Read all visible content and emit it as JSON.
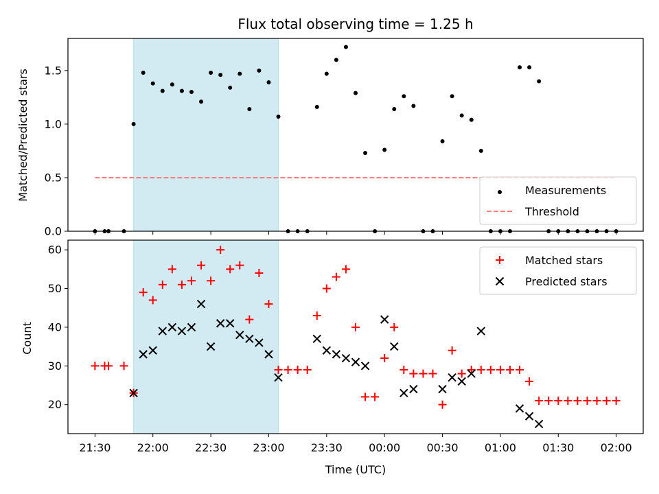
{
  "chart_data": [
    {
      "type": "scatter",
      "title": "Flux total observing time = 1.25 h",
      "ylabel": "Matched/Predicted stars",
      "xlabel": "",
      "xlim": [
        "21:16",
        "02:14"
      ],
      "ylim": [
        0,
        1.8
      ],
      "yticks": [
        "0.0",
        "0.5",
        "1.0",
        "1.5"
      ],
      "shaded_region": {
        "start": "21:50",
        "end": "23:05",
        "color": "#add8e6"
      },
      "series": [
        {
          "name": "Measurements",
          "color": "#000000",
          "marker": "dot",
          "points": [
            [
              "21:30",
              0.0
            ],
            [
              "21:35",
              0.0
            ],
            [
              "21:37",
              0.0
            ],
            [
              "21:45",
              0.0
            ],
            [
              "21:50",
              1.0
            ],
            [
              "21:55",
              1.48
            ],
            [
              "22:00",
              1.38
            ],
            [
              "22:05",
              1.31
            ],
            [
              "22:10",
              1.37
            ],
            [
              "22:15",
              1.31
            ],
            [
              "22:20",
              1.3
            ],
            [
              "22:25",
              1.21
            ],
            [
              "22:30",
              1.48
            ],
            [
              "22:35",
              1.46
            ],
            [
              "22:40",
              1.34
            ],
            [
              "22:45",
              1.47
            ],
            [
              "22:50",
              1.14
            ],
            [
              "22:55",
              1.5
            ],
            [
              "23:00",
              1.39
            ],
            [
              "23:05",
              1.07
            ],
            [
              "23:10",
              0.0
            ],
            [
              "23:15",
              0.0
            ],
            [
              "23:20",
              0.0
            ],
            [
              "23:25",
              1.16
            ],
            [
              "23:30",
              1.47
            ],
            [
              "23:35",
              1.6
            ],
            [
              "23:40",
              1.72
            ],
            [
              "23:45",
              1.29
            ],
            [
              "23:50",
              0.73
            ],
            [
              "23:55",
              0.0
            ],
            [
              "00:00",
              0.76
            ],
            [
              "00:05",
              1.14
            ],
            [
              "00:10",
              1.26
            ],
            [
              "00:15",
              1.17
            ],
            [
              "00:20",
              0.0
            ],
            [
              "00:25",
              0.0
            ],
            [
              "00:30",
              0.84
            ],
            [
              "00:35",
              1.26
            ],
            [
              "00:40",
              1.08
            ],
            [
              "00:45",
              1.04
            ],
            [
              "00:50",
              0.75
            ],
            [
              "00:55",
              0.0
            ],
            [
              "01:00",
              0.0
            ],
            [
              "01:05",
              0.0
            ],
            [
              "01:10",
              1.53
            ],
            [
              "01:15",
              1.53
            ],
            [
              "01:20",
              1.4
            ],
            [
              "01:25",
              0.0
            ],
            [
              "01:30",
              0.0
            ],
            [
              "01:35",
              0.0
            ],
            [
              "01:40",
              0.0
            ],
            [
              "01:45",
              0.0
            ],
            [
              "01:50",
              0.0
            ],
            [
              "01:55",
              0.0
            ],
            [
              "02:00",
              0.0
            ]
          ]
        },
        {
          "name": "Threshold",
          "color": "#ff7f7f",
          "style": "dashed",
          "points": [
            [
              "21:30",
              0.5
            ],
            [
              "02:00",
              0.5
            ]
          ]
        }
      ],
      "legend": "bottom-right"
    },
    {
      "type": "scatter",
      "title": "",
      "ylabel": "Count",
      "xlabel": "Time (UTC)",
      "xlim": [
        "21:16",
        "02:14"
      ],
      "ylim": [
        12.5,
        62.5
      ],
      "yticks": [
        "20",
        "30",
        "40",
        "50",
        "60"
      ],
      "xticks": [
        "21:30",
        "22:00",
        "22:30",
        "23:00",
        "23:30",
        "00:00",
        "00:30",
        "01:00",
        "01:30",
        "02:00"
      ],
      "shaded_region": {
        "start": "21:50",
        "end": "23:05",
        "color": "#add8e6"
      },
      "series": [
        {
          "name": "Matched stars",
          "color": "#ff0000",
          "marker": "plus",
          "points": [
            [
              "21:30",
              30
            ],
            [
              "21:35",
              30
            ],
            [
              "21:37",
              30
            ],
            [
              "21:45",
              30
            ],
            [
              "21:50",
              23
            ],
            [
              "21:55",
              49
            ],
            [
              "22:00",
              47
            ],
            [
              "22:05",
              51
            ],
            [
              "22:10",
              55
            ],
            [
              "22:15",
              51
            ],
            [
              "22:20",
              52
            ],
            [
              "22:25",
              56
            ],
            [
              "22:30",
              52
            ],
            [
              "22:35",
              60
            ],
            [
              "22:40",
              55
            ],
            [
              "22:45",
              56
            ],
            [
              "22:50",
              42
            ],
            [
              "22:55",
              54
            ],
            [
              "23:00",
              46
            ],
            [
              "23:05",
              29
            ],
            [
              "23:10",
              29
            ],
            [
              "23:15",
              29
            ],
            [
              "23:20",
              29
            ],
            [
              "23:25",
              43
            ],
            [
              "23:30",
              50
            ],
            [
              "23:35",
              53
            ],
            [
              "23:40",
              55
            ],
            [
              "23:45",
              40
            ],
            [
              "23:50",
              22
            ],
            [
              "23:55",
              22
            ],
            [
              "00:00",
              32
            ],
            [
              "00:05",
              40
            ],
            [
              "00:10",
              29
            ],
            [
              "00:15",
              28
            ],
            [
              "00:20",
              28
            ],
            [
              "00:25",
              28
            ],
            [
              "00:30",
              20
            ],
            [
              "00:35",
              34
            ],
            [
              "00:40",
              28
            ],
            [
              "00:45",
              29
            ],
            [
              "00:50",
              29
            ],
            [
              "00:55",
              29
            ],
            [
              "01:00",
              29
            ],
            [
              "01:05",
              29
            ],
            [
              "01:10",
              29
            ],
            [
              "01:15",
              26
            ],
            [
              "01:20",
              21
            ],
            [
              "01:25",
              21
            ],
            [
              "01:30",
              21
            ],
            [
              "01:35",
              21
            ],
            [
              "01:40",
              21
            ],
            [
              "01:45",
              21
            ],
            [
              "01:50",
              21
            ],
            [
              "01:55",
              21
            ],
            [
              "02:00",
              21
            ]
          ]
        },
        {
          "name": "Predicted stars",
          "color": "#000000",
          "marker": "x",
          "points": [
            [
              "21:50",
              23
            ],
            [
              "21:55",
              33
            ],
            [
              "22:00",
              34
            ],
            [
              "22:05",
              39
            ],
            [
              "22:10",
              40
            ],
            [
              "22:15",
              39
            ],
            [
              "22:20",
              40
            ],
            [
              "22:25",
              46
            ],
            [
              "22:30",
              35
            ],
            [
              "22:35",
              41
            ],
            [
              "22:40",
              41
            ],
            [
              "22:45",
              38
            ],
            [
              "22:50",
              37
            ],
            [
              "22:55",
              36
            ],
            [
              "23:00",
              33
            ],
            [
              "23:05",
              27
            ],
            [
              "23:25",
              37
            ],
            [
              "23:30",
              34
            ],
            [
              "23:35",
              33
            ],
            [
              "23:40",
              32
            ],
            [
              "23:45",
              31
            ],
            [
              "23:50",
              30
            ],
            [
              "00:00",
              42
            ],
            [
              "00:05",
              35
            ],
            [
              "00:10",
              23
            ],
            [
              "00:15",
              24
            ],
            [
              "00:30",
              24
            ],
            [
              "00:35",
              27
            ],
            [
              "00:40",
              26
            ],
            [
              "00:45",
              28
            ],
            [
              "00:50",
              39
            ],
            [
              "01:10",
              19
            ],
            [
              "01:15",
              17
            ],
            [
              "01:20",
              15
            ]
          ]
        }
      ],
      "legend": "top-right"
    }
  ]
}
